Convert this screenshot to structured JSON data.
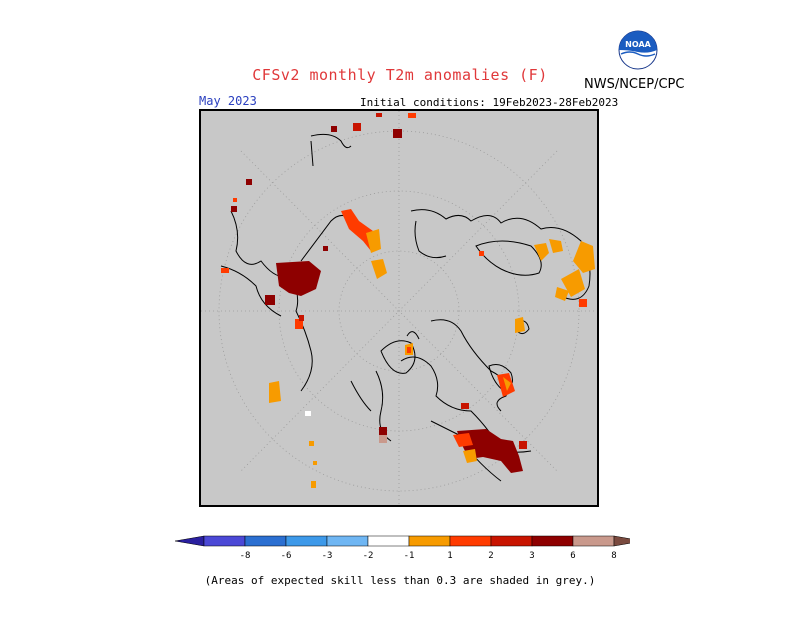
{
  "header": {
    "title": "CFSv2 monthly T2m anomalies (F)",
    "agency": "NWS/NCEP/CPC",
    "logo_text": "NOAA",
    "month": "May 2023",
    "initial_conditions": "Initial conditions: 19Feb2023-28Feb2023"
  },
  "legend": {
    "ticks": [
      "-8",
      "-6",
      "-3",
      "-2",
      "-1",
      "1",
      "2",
      "3",
      "6",
      "8"
    ],
    "colors": [
      "#2a1f9f",
      "#4b48d6",
      "#2b6fd1",
      "#3d99e9",
      "#6fb6f3",
      "#ffffff",
      "#f79b00",
      "#ff3b00",
      "#c81400",
      "#8e0000",
      "#c9998c",
      "#7a4a3f"
    ]
  },
  "map": {
    "background_color": "#c8c8c8",
    "coast_color": "#000000",
    "grid": "dotted"
  },
  "footnote": "(Areas of expected skill less than 0.3 are shaded in grey.)"
}
